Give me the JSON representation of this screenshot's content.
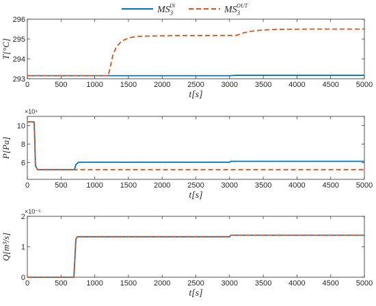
{
  "legend": {
    "series_in_label": "MS₃^IN",
    "series_out_label": "MS₃^OUT"
  },
  "chart_data": [
    {
      "type": "line",
      "ylabel": "T[°C]",
      "xlabel": "t[s]",
      "exponent": "",
      "xlim": [
        0,
        5000
      ],
      "ylim": [
        293,
        296
      ],
      "xticks": [
        0,
        500,
        1000,
        1500,
        2000,
        2500,
        3000,
        3500,
        4000,
        4500,
        5000
      ],
      "yticks": [
        293,
        294,
        295,
        296
      ],
      "ytick_labels": [
        "293",
        "294",
        "295",
        "296"
      ],
      "series": [
        {
          "name": "MS₃^IN",
          "color": "#0072BD",
          "style": "solid",
          "x": [
            0,
            1200,
            2000,
            3000,
            3100,
            5000
          ],
          "y": [
            293.15,
            293.15,
            293.15,
            293.15,
            293.17,
            293.17
          ]
        },
        {
          "name": "MS₃^OUT",
          "color": "#D95319",
          "style": "dashed",
          "x": [
            0,
            1200,
            1230,
            1270,
            1320,
            1400,
            1500,
            1600,
            1800,
            2200,
            3100,
            3200,
            3300,
            3450,
            3600,
            3800,
            4200,
            5000
          ],
          "y": [
            293.15,
            293.15,
            293.6,
            294.2,
            294.6,
            294.9,
            295.05,
            295.12,
            295.15,
            295.17,
            295.18,
            295.3,
            295.38,
            295.44,
            295.47,
            295.49,
            295.5,
            295.5
          ]
        }
      ]
    },
    {
      "type": "line",
      "ylabel": "P[Pa]",
      "xlabel": "t[s]",
      "exponent": "×10⁴",
      "xlim": [
        0,
        5000
      ],
      "ylim": [
        4.2,
        11
      ],
      "xticks": [
        0,
        500,
        1000,
        1500,
        2000,
        2500,
        3000,
        3500,
        4000,
        4500,
        5000
      ],
      "yticks": [
        6,
        8,
        10
      ],
      "ytick_labels": [
        "6",
        "8",
        "10"
      ],
      "series": [
        {
          "name": "MS₃^IN",
          "color": "#0072BD",
          "style": "solid",
          "x": [
            0,
            100,
            110,
            120,
            150,
            700,
            720,
            760,
            3000,
            3020,
            5000
          ],
          "y": [
            10.4,
            10.4,
            8.5,
            5.7,
            5.25,
            5.25,
            5.8,
            6.05,
            6.05,
            6.15,
            6.15
          ]
        },
        {
          "name": "MS₃^OUT",
          "color": "#D95319",
          "style": "dashed",
          "x": [
            0,
            100,
            110,
            120,
            150,
            5000
          ],
          "y": [
            10.4,
            10.4,
            8.5,
            5.7,
            5.25,
            5.25
          ]
        }
      ]
    },
    {
      "type": "line",
      "ylabel": "Q[m³/s]",
      "xlabel": "t[s]",
      "exponent": "×10⁻⁵",
      "xlim": [
        0,
        5000
      ],
      "ylim": [
        0,
        2
      ],
      "xticks": [
        0,
        500,
        1000,
        1500,
        2000,
        2500,
        3000,
        3500,
        4000,
        4500,
        5000
      ],
      "yticks": [
        0,
        1,
        2
      ],
      "ytick_labels": [
        "0",
        "1",
        "2"
      ],
      "series": [
        {
          "name": "MS₃^IN",
          "color": "#0072BD",
          "style": "solid",
          "x": [
            0,
            690,
            705,
            720,
            740,
            760,
            3000,
            3020,
            5000
          ],
          "y": [
            0,
            0,
            0.6,
            1.25,
            1.32,
            1.33,
            1.33,
            1.38,
            1.38
          ]
        },
        {
          "name": "MS₃^OUT",
          "color": "#D95319",
          "style": "dashed",
          "x": [
            0,
            690,
            705,
            720,
            740,
            760,
            3000,
            3020,
            5000
          ],
          "y": [
            0,
            0,
            0.6,
            1.25,
            1.32,
            1.33,
            1.33,
            1.38,
            1.38
          ]
        }
      ]
    }
  ]
}
